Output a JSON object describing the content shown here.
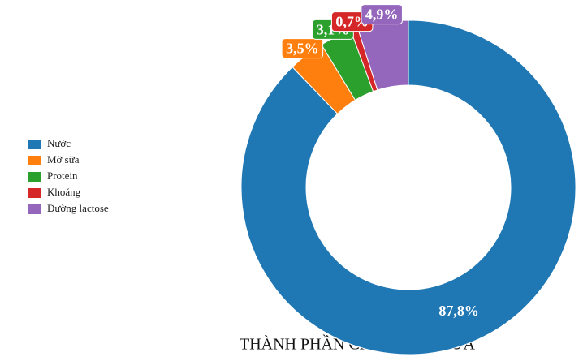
{
  "chart_data": {
    "type": "donut",
    "title": "THÀNH PHẦN CHÍNH CỦA SỮA",
    "categories": [
      "Nước",
      "Mỡ sữa",
      "Protein",
      "Khoáng",
      "Đường lactose"
    ],
    "values": [
      87.8,
      3.5,
      3.1,
      0.7,
      4.9
    ],
    "value_labels": [
      "87,8%",
      "3,5%",
      "3,1%",
      "0,7%",
      "4,9%"
    ],
    "colors": [
      "#1f77b4",
      "#ff7f0e",
      "#2ca02c",
      "#d62728",
      "#9467bd"
    ],
    "legend": "left"
  }
}
